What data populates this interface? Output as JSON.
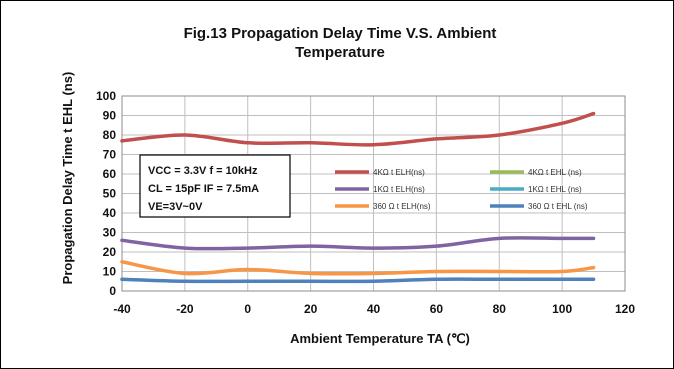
{
  "chart_data": {
    "type": "line",
    "title_line1": "Fig.13 Propagation Delay Time V.S. Ambient",
    "title_line2": "Temperature",
    "xlabel": "Ambient Temperature TA (℃)",
    "ylabel": "Propagation Delay Time  t EHL (ns)",
    "xlim": [
      -40,
      120
    ],
    "ylim": [
      0,
      100
    ],
    "xticks": [
      -40,
      -20,
      0,
      20,
      40,
      60,
      80,
      100,
      120
    ],
    "yticks": [
      0,
      10,
      20,
      30,
      40,
      50,
      60,
      70,
      80,
      90,
      100
    ],
    "grid": true,
    "legend_position": "center-right",
    "conditions": [
      "VCC = 3.3V f = 10kHz",
      "CL = 15pF IF = 7.5mA",
      "VE=3V~0V"
    ],
    "series": [
      {
        "name": "4KΩ t ELH(ns)",
        "color": "#c0504d",
        "x": [
          -40,
          -20,
          0,
          20,
          40,
          60,
          80,
          100,
          110
        ],
        "y": [
          77,
          80,
          76,
          76,
          75,
          78,
          80,
          86,
          91
        ]
      },
      {
        "name": "4KΩ t EHL (ns)",
        "color": "#9bbb59",
        "x": [],
        "y": []
      },
      {
        "name": "1KΩ t ELH(ns)",
        "color": "#8064a2",
        "x": [
          -40,
          -20,
          0,
          20,
          40,
          60,
          80,
          100,
          110
        ],
        "y": [
          26,
          22,
          22,
          23,
          22,
          23,
          27,
          27,
          27
        ]
      },
      {
        "name": "1KΩ t EHL (ns)",
        "color": "#4bacc6",
        "x": [],
        "y": []
      },
      {
        "name": "360 Ω t ELH(ns)",
        "color": "#f79646",
        "x": [
          -40,
          -20,
          0,
          20,
          40,
          60,
          80,
          100,
          110
        ],
        "y": [
          15,
          9,
          11,
          9,
          9,
          10,
          10,
          10,
          12
        ]
      },
      {
        "name": "360 Ω t EHL (ns)",
        "color": "#4f81bd",
        "x": [
          -40,
          -20,
          0,
          20,
          40,
          60,
          80,
          100,
          110
        ],
        "y": [
          6,
          5,
          5,
          5,
          5,
          6,
          6,
          6,
          6
        ]
      }
    ]
  }
}
